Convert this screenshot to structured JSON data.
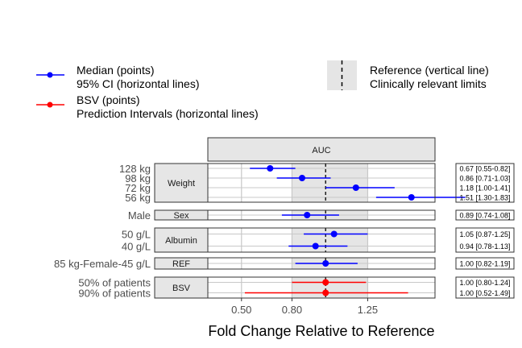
{
  "chart_data": {
    "type": "forest",
    "xlabel": "Fold Change Relative to Reference",
    "xlim": [
      0.3,
      1.65
    ],
    "x_ticks": [
      "0.50",
      "0.80",
      "1.25"
    ],
    "x_tick_values": [
      0.5,
      0.8,
      1.25
    ],
    "grid": true,
    "facet_label": "AUC",
    "reference_value": 1.0,
    "clinically_relevant_limits": [
      0.8,
      1.25
    ],
    "legend": {
      "position": "top",
      "median": "Median (points)",
      "ci": "95% CI (horizontal lines)",
      "bsv": "BSV (points)",
      "pi": "Prediction Intervals (horizontal lines)",
      "reference": "Reference (vertical line)",
      "limits": "Clinically relevant limits"
    },
    "colors": {
      "median": "#0000ff",
      "bsv": "#ff0000",
      "band": "#e5e5e5",
      "strip": "#e6e6e6"
    },
    "groups": [
      {
        "name": "Weight",
        "rows": [
          {
            "label": "128 kg",
            "median": 0.67,
            "lo": 0.55,
            "hi": 0.82,
            "series": "median",
            "annotation": "0.67 [0.55-0.82]"
          },
          {
            "label": "98 kg",
            "median": 0.86,
            "lo": 0.71,
            "hi": 1.03,
            "series": "median",
            "annotation": "0.86 [0.71-1.03]"
          },
          {
            "label": "72 kg",
            "median": 1.18,
            "lo": 1.0,
            "hi": 1.41,
            "series": "median",
            "annotation": "1.18 [1.00-1.41]"
          },
          {
            "label": "56 kg",
            "median": 1.51,
            "lo": 1.3,
            "hi": 1.83,
            "series": "median",
            "annotation": "1.51 [1.30-1.83]"
          }
        ]
      },
      {
        "name": "Sex",
        "rows": [
          {
            "label": "Male",
            "median": 0.89,
            "lo": 0.74,
            "hi": 1.08,
            "series": "median",
            "annotation": "0.89 [0.74-1.08]"
          }
        ]
      },
      {
        "name": "Albumin",
        "rows": [
          {
            "label": "50 g/L",
            "median": 1.05,
            "lo": 0.87,
            "hi": 1.25,
            "series": "median",
            "annotation": "1.05 [0.87-1.25]"
          },
          {
            "label": "40 g/L",
            "median": 0.94,
            "lo": 0.78,
            "hi": 1.13,
            "series": "median",
            "annotation": "0.94 [0.78-1.13]"
          }
        ]
      },
      {
        "name": "REF",
        "rows": [
          {
            "label": "85 kg-Female-45 g/L",
            "median": 1.0,
            "lo": 0.82,
            "hi": 1.19,
            "series": "median",
            "annotation": "1.00 [0.82-1.19]"
          }
        ]
      },
      {
        "name": "BSV",
        "rows": [
          {
            "label": "50% of patients",
            "median": 1.0,
            "lo": 0.8,
            "hi": 1.24,
            "series": "bsv",
            "annotation": "1.00 [0.80-1.24]"
          },
          {
            "label": "90% of patients",
            "median": 1.0,
            "lo": 0.52,
            "hi": 1.49,
            "series": "bsv",
            "annotation": "1.00 [0.52-1.49]"
          }
        ]
      }
    ]
  }
}
